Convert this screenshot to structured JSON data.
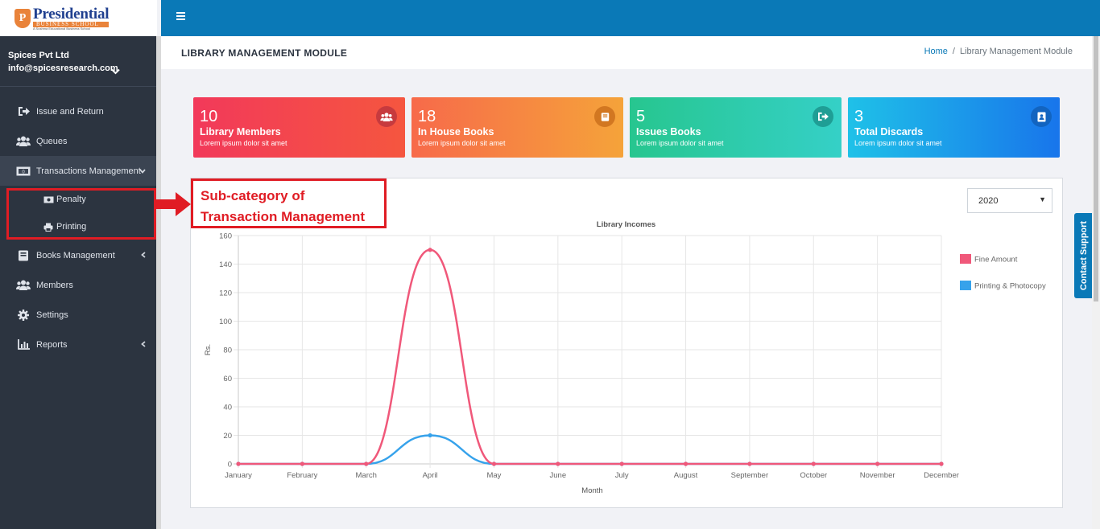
{
  "logo": {
    "mark": "P",
    "name": "Presidential",
    "subtitle": "BUSINESS SCHOOL",
    "tagline": "A Sushma Educational Business School"
  },
  "user": {
    "company": "Spices Pvt Ltd",
    "email": "info@spicesresearch.com"
  },
  "nav": {
    "issue_return": "Issue and Return",
    "queues": "Queues",
    "transactions": "Transactions Management",
    "penalty": "Penalty",
    "printing": "Printing",
    "books": "Books Management",
    "members": "Members",
    "settings": "Settings",
    "reports": "Reports"
  },
  "header": {
    "title": "LIBRARY MANAGEMENT MODULE"
  },
  "breadcrumb": {
    "home": "Home",
    "sep": "/",
    "current": "Library Management Module"
  },
  "cards": [
    {
      "value": "10",
      "label": "Library Members",
      "desc": "Lorem ipsum dolor sit amet",
      "icon": "users-icon"
    },
    {
      "value": "18",
      "label": "In House Books",
      "desc": "Lorem ipsum dolor sit amet",
      "icon": "book-icon"
    },
    {
      "value": "5",
      "label": "Issues Books",
      "desc": "Lorem ipsum dolor sit amet",
      "icon": "sign-out-icon"
    },
    {
      "value": "3",
      "label": "Total Discards",
      "desc": "Lorem ipsum dolor sit amet",
      "icon": "address-book-icon"
    }
  ],
  "year_select": {
    "value": "2020"
  },
  "annotation": {
    "line1": "Sub-category of",
    "line2": "Transaction Management",
    "color": "#e01c24"
  },
  "contact_support": "Contact Support",
  "chart_data": {
    "type": "line",
    "title": "Library Incomes",
    "xlabel": "Month",
    "ylabel": "Rs.",
    "ylim": [
      0,
      160
    ],
    "yticks": [
      0,
      20,
      40,
      60,
      80,
      100,
      120,
      140,
      160
    ],
    "grid": true,
    "legend_position": "right",
    "categories": [
      "January",
      "February",
      "March",
      "April",
      "May",
      "June",
      "July",
      "August",
      "September",
      "October",
      "November",
      "December"
    ],
    "series": [
      {
        "name": "Fine Amount",
        "color": "#f0587a",
        "values": [
          0,
          0,
          0,
          150,
          0,
          0,
          0,
          0,
          0,
          0,
          0,
          0
        ]
      },
      {
        "name": "Printing & Photocopy",
        "color": "#36a2eb",
        "values": [
          0,
          0,
          0,
          20,
          0,
          0,
          0,
          0,
          0,
          0,
          0,
          0
        ]
      }
    ]
  }
}
